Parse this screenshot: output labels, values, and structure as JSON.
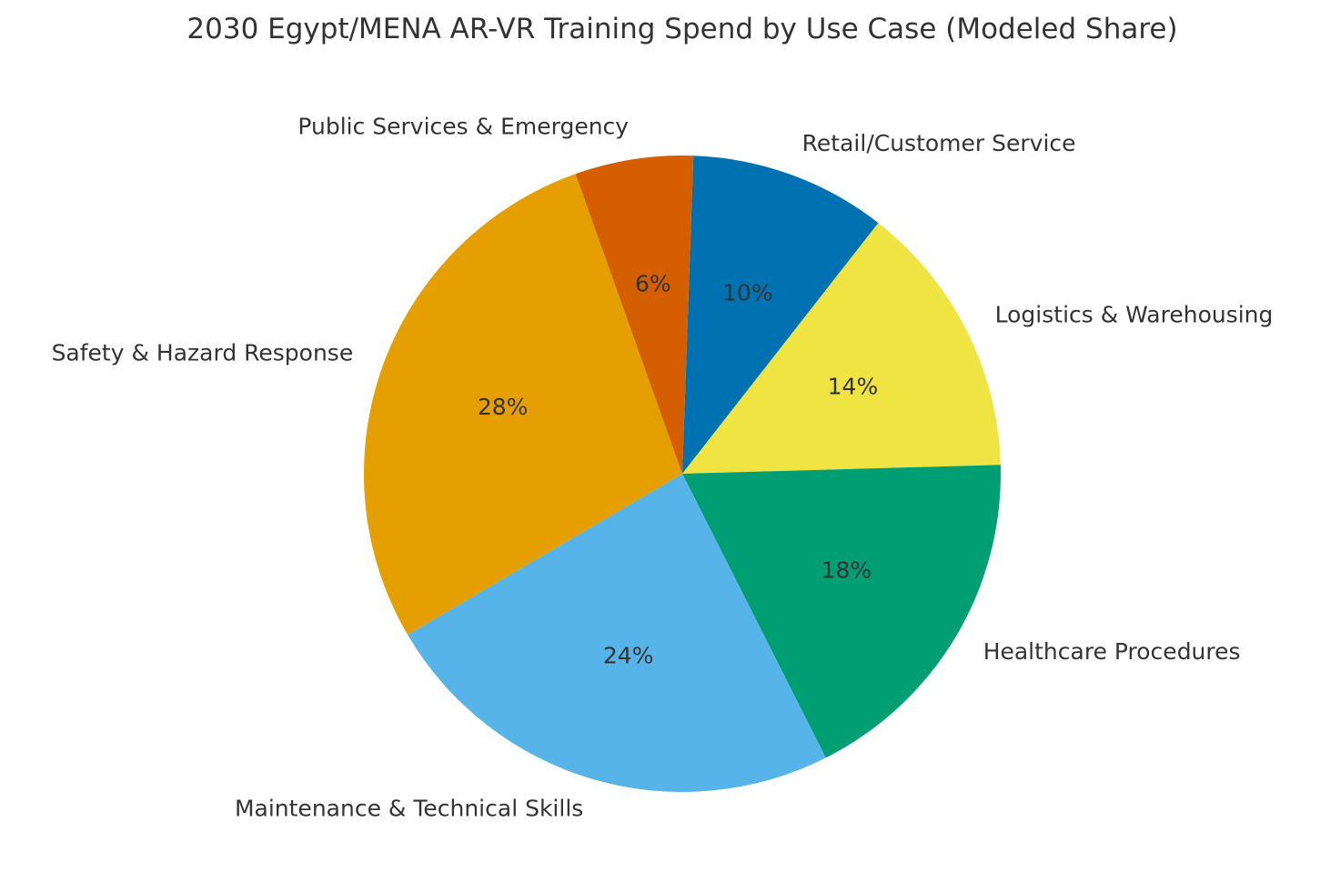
{
  "chart_data": {
    "type": "pie",
    "title": "2030 Egypt/MENA AR-VR Training Spend by Use Case (Modeled Share)",
    "start_angle_deg": 88,
    "direction": "clockwise",
    "slices": [
      {
        "label": "Retail/Customer Service",
        "value": 10,
        "pct_label": "10%",
        "color": "#0072B2"
      },
      {
        "label": "Logistics & Warehousing",
        "value": 14,
        "pct_label": "14%",
        "color": "#F0E442"
      },
      {
        "label": "Healthcare Procedures",
        "value": 18,
        "pct_label": "18%",
        "color": "#009E73"
      },
      {
        "label": "Maintenance & Technical Skills",
        "value": 24,
        "pct_label": "24%",
        "color": "#56B4E9"
      },
      {
        "label": "Safety & Hazard Response",
        "value": 28,
        "pct_label": "28%",
        "color": "#E69F00"
      },
      {
        "label": "Public Services & Emergency",
        "value": 6,
        "pct_label": "6%",
        "color": "#D55E00"
      }
    ]
  }
}
